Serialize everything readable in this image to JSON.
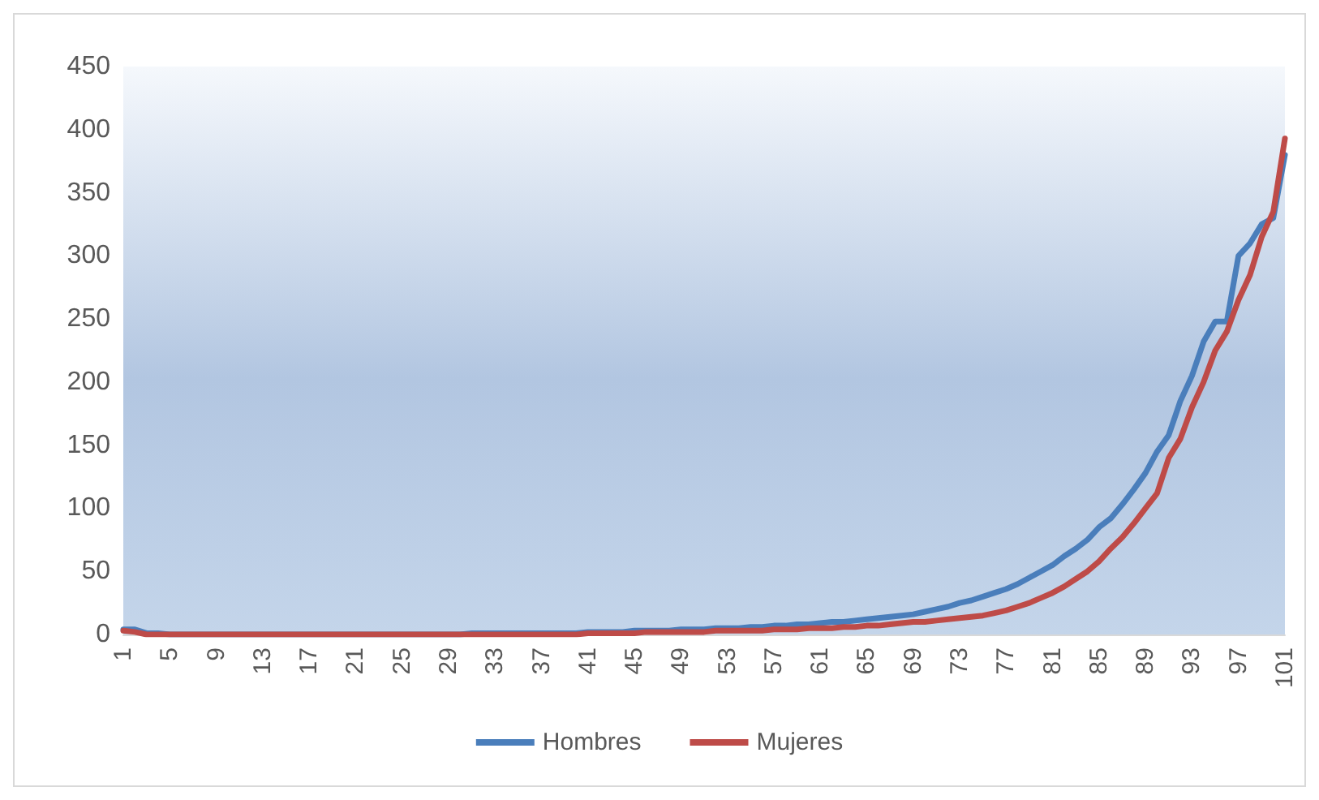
{
  "chart_data": {
    "type": "line",
    "categories": [
      "1",
      null,
      null,
      null,
      "5",
      null,
      null,
      null,
      "9",
      null,
      null,
      null,
      "13",
      null,
      null,
      null,
      "17",
      null,
      null,
      null,
      "21",
      null,
      null,
      null,
      "25",
      null,
      null,
      null,
      "29",
      null,
      null,
      null,
      "33",
      null,
      null,
      null,
      "37",
      null,
      null,
      null,
      "41",
      null,
      null,
      null,
      "45",
      null,
      null,
      null,
      "49",
      null,
      null,
      null,
      "53",
      null,
      null,
      null,
      "57",
      null,
      null,
      null,
      "61",
      null,
      null,
      null,
      "65",
      null,
      null,
      null,
      "69",
      null,
      null,
      null,
      "73",
      null,
      null,
      null,
      "77",
      null,
      null,
      null,
      "81",
      null,
      null,
      null,
      "85",
      null,
      null,
      null,
      "89",
      null,
      null,
      null,
      "93",
      null,
      null,
      null,
      "97",
      null,
      null,
      null,
      "101"
    ],
    "series": [
      {
        "name": "Hombres",
        "color": "#4a7ebb",
        "values": [
          4,
          4,
          1,
          1,
          0,
          0,
          0,
          0,
          0,
          0,
          0,
          0,
          0,
          0,
          0,
          0,
          0,
          0,
          0,
          0,
          0,
          0,
          0,
          0,
          0,
          0,
          0,
          0,
          0,
          0,
          1,
          1,
          1,
          1,
          1,
          1,
          1,
          1,
          1,
          1,
          2,
          2,
          2,
          2,
          3,
          3,
          3,
          3,
          4,
          4,
          4,
          5,
          5,
          5,
          6,
          6,
          7,
          7,
          8,
          8,
          9,
          10,
          10,
          11,
          12,
          13,
          14,
          15,
          16,
          18,
          20,
          22,
          25,
          27,
          30,
          33,
          36,
          40,
          45,
          50,
          55,
          62,
          68,
          75,
          85,
          92,
          103,
          115,
          128,
          145,
          158,
          185,
          205,
          232,
          248,
          248,
          300,
          310,
          325,
          330,
          380
        ]
      },
      {
        "name": "Mujeres",
        "color": "#be4b48",
        "values": [
          3,
          2,
          0,
          0,
          0,
          0,
          0,
          0,
          0,
          0,
          0,
          0,
          0,
          0,
          0,
          0,
          0,
          0,
          0,
          0,
          0,
          0,
          0,
          0,
          0,
          0,
          0,
          0,
          0,
          0,
          0,
          0,
          0,
          0,
          0,
          0,
          0,
          0,
          0,
          0,
          1,
          1,
          1,
          1,
          1,
          2,
          2,
          2,
          2,
          2,
          2,
          3,
          3,
          3,
          3,
          3,
          4,
          4,
          4,
          5,
          5,
          5,
          6,
          6,
          7,
          7,
          8,
          9,
          10,
          10,
          11,
          12,
          13,
          14,
          15,
          17,
          19,
          22,
          25,
          29,
          33,
          38,
          44,
          50,
          58,
          68,
          77,
          88,
          100,
          112,
          140,
          155,
          180,
          200,
          225,
          240,
          265,
          285,
          315,
          335,
          393
        ]
      }
    ],
    "ylim": [
      0,
      450
    ],
    "yticks": [
      0,
      50,
      100,
      150,
      200,
      250,
      300,
      350,
      400,
      450
    ],
    "grid": false,
    "legend": "bottom",
    "marker": "none",
    "line_style": "solid"
  }
}
